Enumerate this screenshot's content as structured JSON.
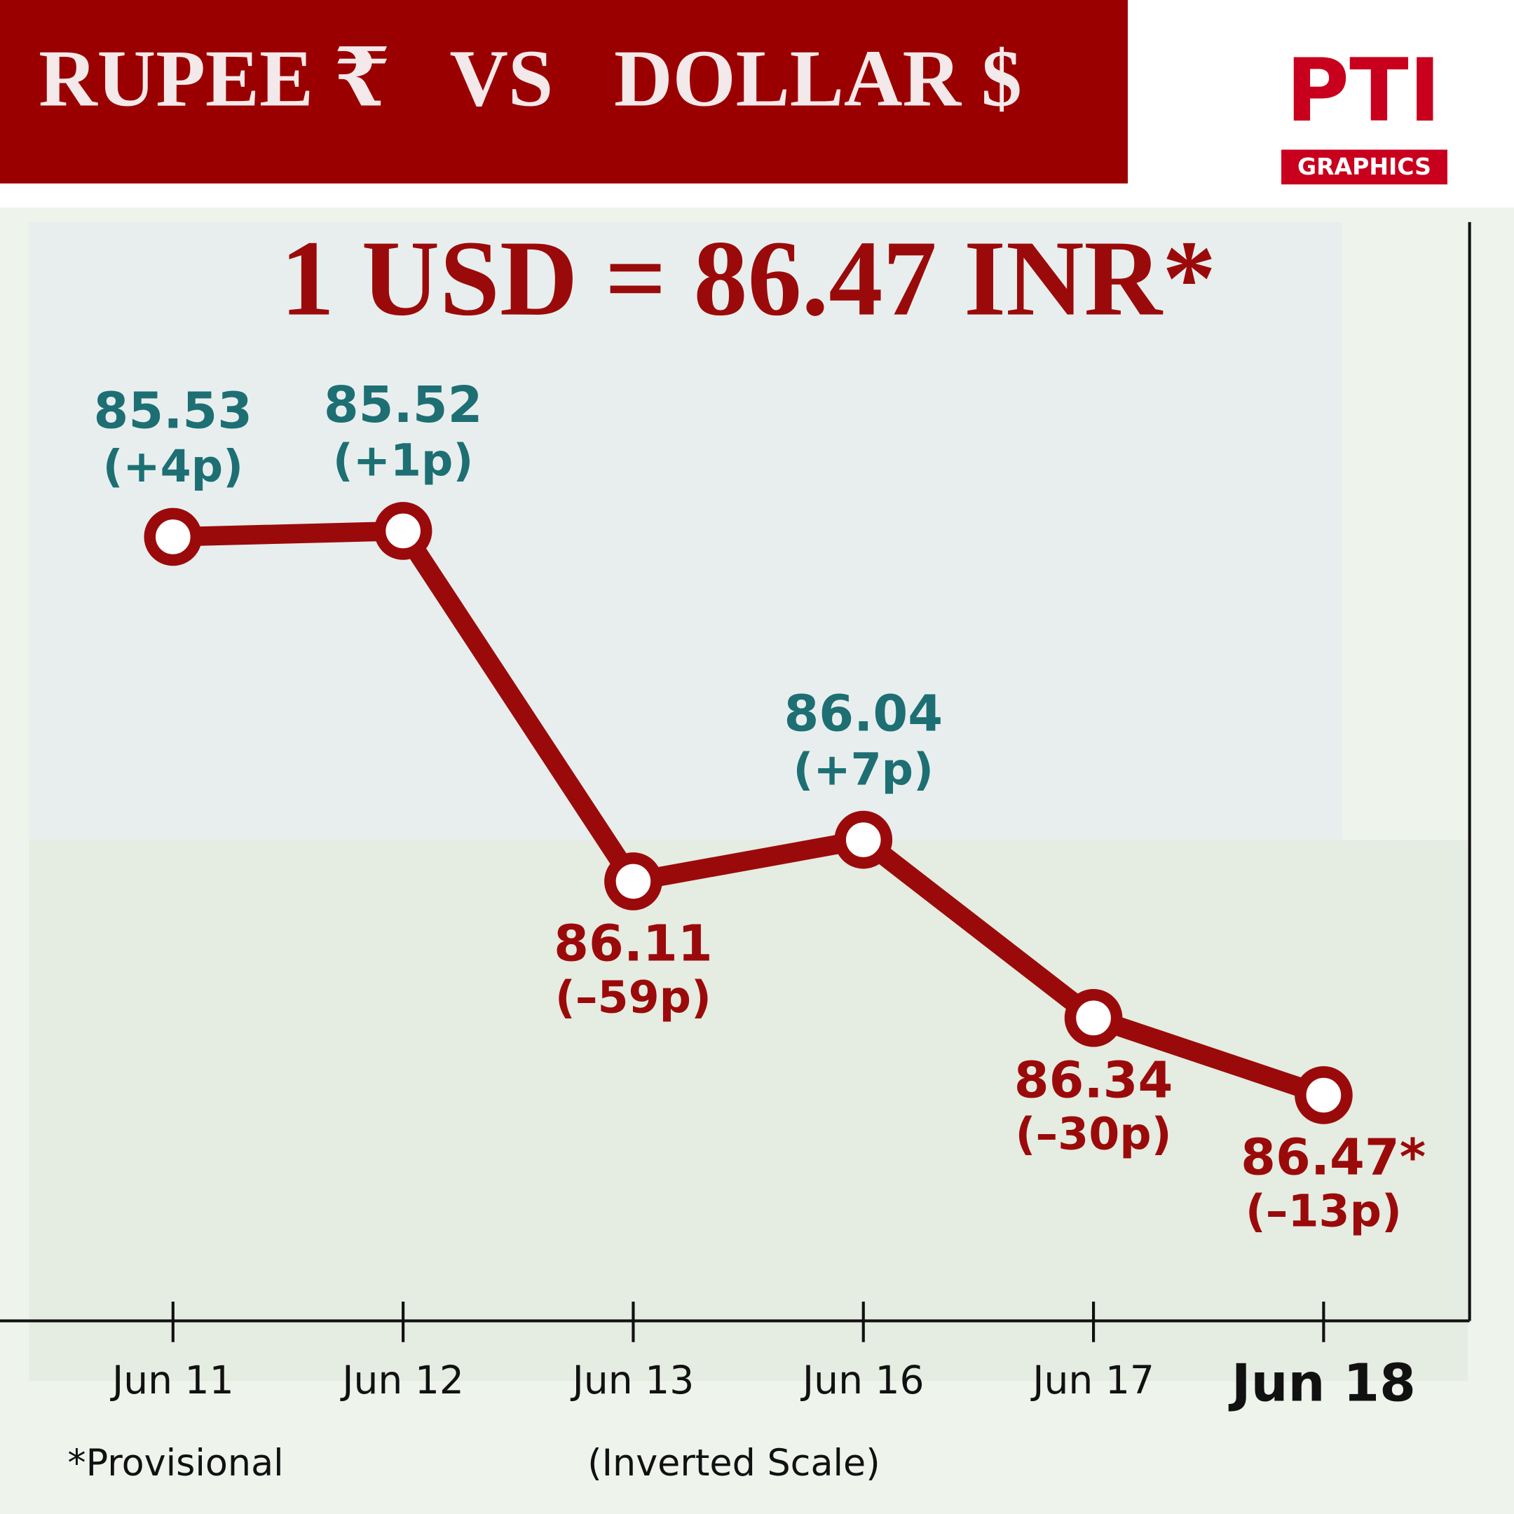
{
  "header": {
    "title": "RUPEE ₹   VS   DOLLAR $",
    "logo": "PTI",
    "logo_caption": "GRAPHICS"
  },
  "chart_data": {
    "type": "line",
    "title": "1 USD = 86.47 INR*",
    "categories": [
      "Jun 11",
      "Jun 12",
      "Jun 13",
      "Jun 16",
      "Jun 17",
      "Jun 18"
    ],
    "values": [
      85.53,
      85.52,
      86.11,
      86.04,
      86.34,
      86.47
    ],
    "value_labels": [
      "85.53",
      "85.52",
      "86.11",
      "86.04",
      "86.34",
      "86.47*"
    ],
    "change_labels": [
      "(+4p)",
      "(+1p)",
      "(–59p)",
      "(+7p)",
      "(–30p)",
      "(–13p)"
    ],
    "label_colors": [
      "#1d6f73",
      "#1d6f73",
      "#9b0a0a",
      "#1d6f73",
      "#9b0a0a",
      "#9b0a0a"
    ],
    "color": "#9b0a0a",
    "ylim": [
      85.0,
      86.85
    ],
    "y_inverted": true,
    "footnote": "*Provisional",
    "scale_note": "(Inverted Scale)"
  }
}
